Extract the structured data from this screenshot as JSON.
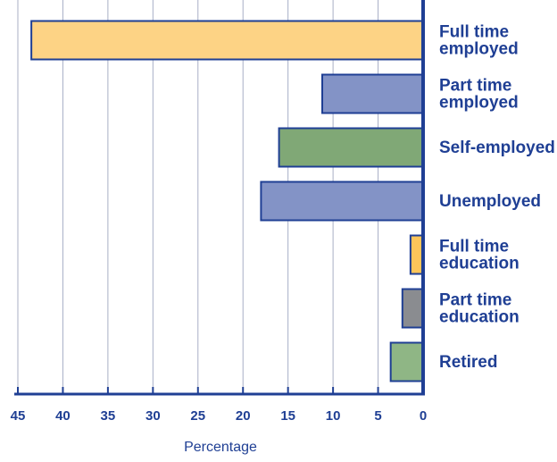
{
  "chart_data": {
    "type": "bar",
    "orientation": "horizontal",
    "x_direction": "reversed",
    "categories": [
      [
        "Full time",
        "employed"
      ],
      [
        "Part time",
        "employed"
      ],
      [
        "Self-employed"
      ],
      [
        "Unemployed"
      ],
      [
        "Full time",
        "education"
      ],
      [
        "Part time",
        "education"
      ],
      [
        "Retired"
      ]
    ],
    "values": [
      43.5,
      11.2,
      16,
      18,
      1.4,
      2.3,
      3.6
    ],
    "bar_colors": [
      "#fdd385",
      "#8393c6",
      "#80a876",
      "#8393c6",
      "#fcc55a",
      "#8a8c90",
      "#8fb685"
    ],
    "xlim": [
      0,
      45
    ],
    "x_ticks": [
      45,
      40,
      35,
      30,
      25,
      20,
      15,
      10,
      5,
      0
    ],
    "xlabel": "Percentage",
    "title": "",
    "ylabel": "",
    "grid": true,
    "axis_color": "#1f3f94",
    "grid_color": "#a8afc6",
    "bar_outline_color": "#1f3f94"
  }
}
